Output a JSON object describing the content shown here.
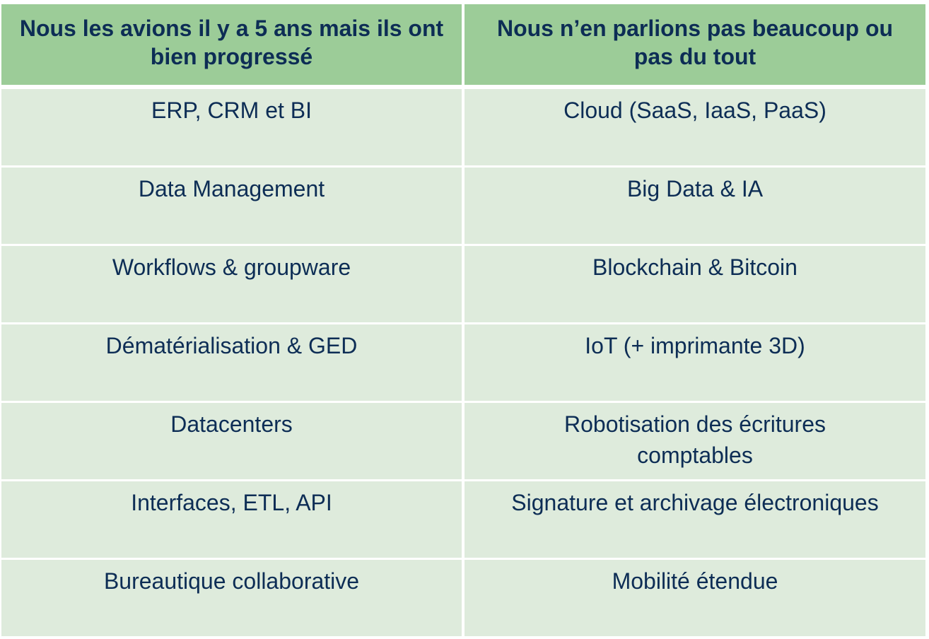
{
  "headers": [
    "Nous les avions il y a 5 ans mais ils ont bien progressé",
    "Nous n’en parlions pas beaucoup ou pas du tout"
  ],
  "rows": [
    [
      "ERP,  CRM et BI",
      "Cloud (SaaS, IaaS, PaaS)"
    ],
    [
      "Data Management",
      "Big Data & IA"
    ],
    [
      "Workflows & groupware",
      "Blockchain  & Bitcoin"
    ],
    [
      "Dématérialisation & GED",
      "IoT (+ imprimante 3D)"
    ],
    [
      "Datacenters",
      "Robotisation des écritures comptables"
    ],
    [
      "Interfaces, ETL, API",
      "Signature et archivage électroniques"
    ],
    [
      "Bureautique collaborative",
      "Mobilité étendue"
    ]
  ],
  "colors": {
    "header_bg": "#9ccc98",
    "cell_bg": "#deebdc",
    "text": "#0d2d55"
  }
}
